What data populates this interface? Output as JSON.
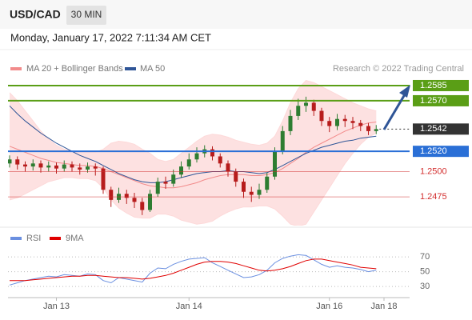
{
  "header": {
    "symbol": "USD/CAD",
    "interval": "30 MIN",
    "timestamp": "Monday, January 17, 2022 7:11:34 AM CET",
    "credit": "Research © 2022 Trading Central"
  },
  "chart_data": [
    {
      "type": "candlestick",
      "categories": [
        null,
        null,
        null,
        null,
        null,
        null,
        "Jan 13",
        null,
        null,
        null,
        null,
        null,
        null,
        null,
        null,
        null,
        null,
        null,
        null,
        null,
        null,
        null,
        null,
        "Jan 14",
        null,
        null,
        null,
        null,
        null,
        null,
        null,
        null,
        null,
        null,
        null,
        null,
        null,
        null,
        null,
        null,
        null,
        "Jan 16",
        null,
        null,
        null,
        null,
        null,
        null,
        "Jan 18"
      ],
      "open": [
        1.2508,
        1.2512,
        1.2507,
        1.2505,
        1.2508,
        1.2504,
        1.2506,
        1.2503,
        1.2507,
        1.2504,
        1.2502,
        1.2505,
        1.2503,
        1.2482,
        1.2472,
        1.2478,
        1.2474,
        1.247,
        1.2462,
        1.2478,
        1.249,
        1.2488,
        1.2497,
        1.2505,
        1.2512,
        1.2518,
        1.2522,
        1.2515,
        1.2508,
        1.25,
        1.249,
        1.248,
        1.2477,
        1.2482,
        1.2495,
        1.252,
        1.254,
        1.2555,
        1.2565,
        1.2568,
        1.256,
        1.255,
        1.2545,
        1.2552,
        1.255,
        1.2548,
        1.2545,
        1.254,
        null
      ],
      "high": [
        1.2516,
        1.2515,
        1.251,
        1.2512,
        1.2511,
        1.251,
        1.2509,
        1.2511,
        1.251,
        1.2508,
        1.2509,
        1.2508,
        1.2505,
        1.2485,
        1.2484,
        1.2482,
        1.2479,
        1.2474,
        1.2482,
        1.2494,
        1.2495,
        1.2502,
        1.251,
        1.2518,
        1.2524,
        1.2526,
        1.2525,
        1.2518,
        1.2511,
        1.2503,
        1.2493,
        1.2485,
        1.2488,
        1.2499,
        1.2524,
        1.2545,
        1.2561,
        1.2572,
        1.2574,
        1.2571,
        1.2563,
        1.2554,
        1.2557,
        1.2556,
        1.2554,
        1.2551,
        1.2548,
        1.2546,
        null
      ],
      "low": [
        1.2504,
        1.2502,
        1.25,
        1.2501,
        1.2499,
        1.25,
        1.2498,
        1.25,
        1.25,
        1.2497,
        1.2499,
        1.2496,
        1.2478,
        1.2465,
        1.2469,
        1.2468,
        1.2464,
        1.2457,
        1.246,
        1.2475,
        1.2483,
        1.2485,
        1.2494,
        1.2502,
        1.2509,
        1.2514,
        1.2511,
        1.2504,
        1.2495,
        1.2485,
        1.2474,
        1.247,
        1.2473,
        1.2479,
        1.2492,
        1.2517,
        1.2536,
        1.2551,
        1.2559,
        1.2555,
        1.2545,
        1.2539,
        1.2541,
        1.2544,
        1.2542,
        1.254,
        1.2536,
        1.2537,
        null
      ],
      "close": [
        1.2512,
        1.2507,
        1.2505,
        1.2508,
        1.2504,
        1.2506,
        1.2503,
        1.2507,
        1.2504,
        1.2502,
        1.2505,
        1.2503,
        1.2482,
        1.2472,
        1.2478,
        1.2474,
        1.247,
        1.2462,
        1.2478,
        1.249,
        1.2488,
        1.2497,
        1.2505,
        1.2512,
        1.2518,
        1.2522,
        1.2515,
        1.2508,
        1.25,
        1.249,
        1.248,
        1.2477,
        1.2482,
        1.2495,
        1.252,
        1.254,
        1.2555,
        1.2565,
        1.2568,
        1.256,
        1.255,
        1.2545,
        1.2552,
        1.255,
        1.2548,
        1.2545,
        1.254,
        1.2542,
        null
      ],
      "up_color": "#2e7d32",
      "down_color": "#b71c1c",
      "series": [
        {
          "name": "MA 20 + Bollinger Bands",
          "color": "#f28b8b",
          "band_color": "#fdd9d9",
          "values": [
            1.2525,
            1.2522,
            1.2519,
            1.2516,
            1.2513,
            1.2511,
            1.2509,
            1.2508,
            1.2507,
            1.2506,
            1.2506,
            1.2505,
            1.2503,
            1.25,
            1.2497,
            1.2494,
            1.2491,
            1.2488,
            1.2486,
            1.2485,
            1.2484,
            1.2484,
            1.2485,
            1.2487,
            1.2489,
            1.2492,
            1.2494,
            1.2496,
            1.2497,
            1.2497,
            1.2497,
            1.2496,
            1.2496,
            1.2497,
            1.2499,
            1.2503,
            1.2508,
            1.2513,
            1.2519,
            1.2524,
            1.2528,
            1.2532,
            1.2536,
            1.254,
            1.2543,
            1.2546,
            1.2548,
            1.2549,
            null
          ],
          "upper": [
            1.2578,
            1.257,
            1.256,
            1.255,
            1.254,
            1.2532,
            1.2526,
            1.2522,
            1.252,
            1.2519,
            1.2519,
            1.2519,
            1.2522,
            1.2528,
            1.253,
            1.2529,
            1.2527,
            1.2522,
            1.2518,
            1.2512,
            1.251,
            1.2512,
            1.2518,
            1.2524,
            1.253,
            1.2535,
            1.2537,
            1.2536,
            1.2534,
            1.2531,
            1.2529,
            1.2527,
            1.2526,
            1.2528,
            1.2535,
            1.255,
            1.2568,
            1.2582,
            1.259,
            1.2588,
            1.2584,
            1.258,
            1.2576,
            1.2572,
            1.2568,
            1.2565,
            1.2562,
            1.256,
            null
          ],
          "lower": [
            1.2472,
            1.2474,
            1.2478,
            1.2482,
            1.2486,
            1.249,
            1.2492,
            1.2494,
            1.2494,
            1.2493,
            1.2493,
            1.2491,
            1.2484,
            1.2472,
            1.2464,
            1.2459,
            1.2455,
            1.2454,
            1.2454,
            1.2458,
            1.2458,
            1.2456,
            1.2452,
            1.245,
            1.2448,
            1.2449,
            1.2451,
            1.2456,
            1.246,
            1.2463,
            1.2465,
            1.2465,
            1.2466,
            1.2466,
            1.2463,
            1.2456,
            1.2448,
            1.2446,
            1.2448,
            1.246,
            1.2472,
            1.2484,
            1.2496,
            1.2508,
            1.2518,
            1.2527,
            1.2534,
            1.2538,
            null
          ]
        },
        {
          "name": "MA 50",
          "color": "#2f5597",
          "values": [
            1.2565,
            1.2557,
            1.255,
            1.2544,
            1.2538,
            1.2533,
            1.2528,
            1.2524,
            1.252,
            1.2516,
            1.2513,
            1.251,
            1.2506,
            1.2502,
            1.2498,
            1.2495,
            1.2492,
            1.249,
            1.2489,
            1.2489,
            1.249,
            1.2492,
            1.2494,
            1.2496,
            1.2498,
            1.2499,
            1.25,
            1.25,
            1.2501,
            1.25,
            1.25,
            1.2499,
            1.2498,
            1.2499,
            1.2502,
            1.2506,
            1.251,
            1.2514,
            1.2518,
            1.2521,
            1.2524,
            1.2526,
            1.2528,
            1.253,
            1.2531,
            1.2533,
            1.2534,
            1.2535,
            null
          ]
        }
      ],
      "ylim": [
        1.2445,
        1.26
      ],
      "levels": [
        {
          "value": 1.2585,
          "label": "1.2585",
          "color": "#5a9e16",
          "boxed": true
        },
        {
          "value": 1.257,
          "label": "1.2570",
          "color": "#5a9e16",
          "boxed": true
        },
        {
          "value": 1.252,
          "label": "1.2520",
          "color": "#2a6fd6",
          "boxed": true
        },
        {
          "value": 1.25,
          "label": "1.2500",
          "color": "#d32f2f",
          "boxed": false
        },
        {
          "value": 1.2475,
          "label": "1.2475",
          "color": "#d32f2f",
          "boxed": false
        }
      ],
      "last_price": {
        "value": 1.2542,
        "label": "1.2542",
        "color": "#333333"
      }
    },
    {
      "type": "line",
      "series": [
        {
          "name": "RSI",
          "color": "#6a8fe0",
          "values": [
            32,
            35,
            38,
            40,
            42,
            44,
            43,
            46,
            45,
            44,
            47,
            46,
            38,
            35,
            42,
            40,
            38,
            36,
            48,
            55,
            54,
            60,
            64,
            67,
            68,
            69,
            62,
            57,
            52,
            47,
            42,
            43,
            46,
            52,
            62,
            68,
            71,
            73,
            72,
            66,
            60,
            56,
            58,
            56,
            55,
            53,
            50,
            52,
            null
          ]
        },
        {
          "name": "9MA",
          "color": "#e00000",
          "values": [
            38,
            38,
            38,
            39,
            40,
            41,
            42,
            43,
            44,
            44,
            45,
            45,
            44,
            43,
            42,
            42,
            41,
            40,
            41,
            43,
            45,
            48,
            52,
            56,
            60,
            63,
            64,
            64,
            63,
            61,
            58,
            55,
            52,
            51,
            52,
            54,
            57,
            61,
            65,
            67,
            67,
            65,
            63,
            61,
            59,
            56,
            55,
            54,
            null
          ]
        }
      ],
      "ylim": [
        15,
        95
      ],
      "yticks": [
        70,
        50,
        30
      ],
      "grid": true
    }
  ]
}
